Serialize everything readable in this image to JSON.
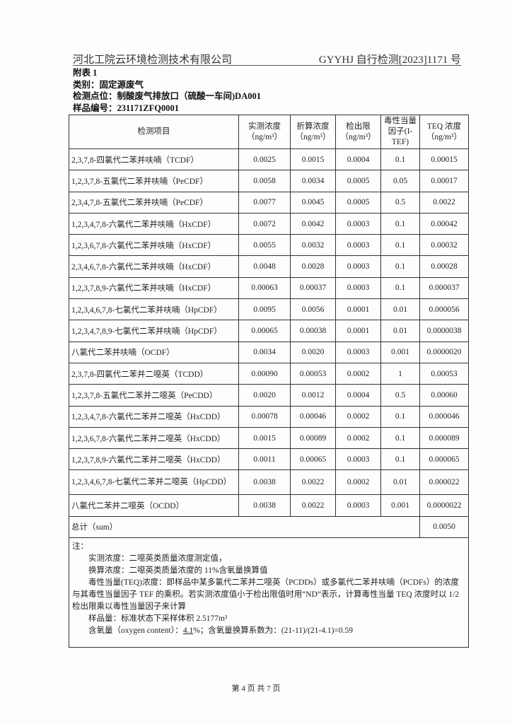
{
  "header": {
    "company": "河北工院云环境检测技术有限公司",
    "report_no": "GYYHJ 自行检测[2023]1171 号"
  },
  "meta": {
    "appendix": "附表 1",
    "category": "类别：固定源废气",
    "location": "检测点位：制酸废气排放口（硫酸一车间)DA001",
    "sample_no": "样品编号：231171ZFQ0001"
  },
  "table": {
    "columns": [
      "检测项目",
      "实测浓度（ng/m³）",
      "折算浓度（ng/m³）",
      "检出限（ng/m³）",
      "毒性当量因子(I-TEF)",
      "TEQ 浓度（ng/m³）"
    ],
    "rows": [
      [
        "2,3,7,8-四氯代二苯并呋喃（TCDF）",
        "0.0025",
        "0.0015",
        "0.0004",
        "0.1",
        "0.00015"
      ],
      [
        "1,2,3,7,8-五氯代二苯并呋喃（PeCDF）",
        "0.0058",
        "0.0034",
        "0.0005",
        "0.05",
        "0.00017"
      ],
      [
        "2,3,4,7,8-五氯代二苯并呋喃（PeCDF）",
        "0.0077",
        "0.0045",
        "0.0005",
        "0.5",
        "0.0022"
      ],
      [
        "1,2,3,4,7,8-六氯代二苯并呋喃（HxCDF）",
        "0.0072",
        "0.0042",
        "0.0003",
        "0.1",
        "0.00042"
      ],
      [
        "1,2,3,6,7,8-六氯代二苯并呋喃（HxCDF）",
        "0.0055",
        "0.0032",
        "0.0003",
        "0.1",
        "0.00032"
      ],
      [
        "2,3,4,6,7,8-六氯代二苯并呋喃（HxCDF）",
        "0.0048",
        "0.0028",
        "0.0003",
        "0.1",
        "0.00028"
      ],
      [
        "1,2,3,7,8,9-六氯代二苯并呋喃（HxCDF）",
        "0.00063",
        "0.00037",
        "0.0003",
        "0.1",
        "0.000037"
      ],
      [
        "1,2,3,4,6,7,8-七氯代二苯并呋喃（HpCDF）",
        "0.0095",
        "0.0056",
        "0.0001",
        "0.01",
        "0.000056"
      ],
      [
        "1,2,3,4,7,8,9-七氯代二苯并呋喃（HpCDF）",
        "0.00065",
        "0.00038",
        "0.0001",
        "0.01",
        "0.0000038"
      ],
      [
        "八氯代二苯并呋喃（OCDF）",
        "0.0034",
        "0.0020",
        "0.0003",
        "0.001",
        "0.0000020"
      ],
      [
        "2,3,7,8-四氯代二苯并二噁英（TCDD）",
        "0.00090",
        "0.00053",
        "0.0002",
        "1",
        "0.00053"
      ],
      [
        "1,2,3,7,8-五氯代二苯并二噁英（PeCDD）",
        "0.0020",
        "0.0012",
        "0.0004",
        "0.5",
        "0.00060"
      ],
      [
        "1,2,3,4,7,8-六氯代二苯并二噁英（HxCDD）",
        "0.00078",
        "0.00046",
        "0.0002",
        "0.1",
        "0.000046"
      ],
      [
        "1,2,3,6,7,8-六氯代二苯并二噁英（HxCDD）",
        "0.0015",
        "0.00089",
        "0.0002",
        "0.1",
        "0.000089"
      ],
      [
        "1,2,3,7,8,9-六氯代二苯并二噁英（HxCDD）",
        "0.0011",
        "0.00065",
        "0.0003",
        "0.1",
        "0.000065"
      ],
      [
        "1,2,3,4,6,7,8-七氯代二苯并二噁英（HpCDD）",
        "0.0038",
        "0.0022",
        "0.0002",
        "0.01",
        "0.000022"
      ],
      [
        "八氯代二苯并二噁英（OCDD）",
        "0.0038",
        "0.0022",
        "0.0003",
        "0.001",
        "0.0000022"
      ]
    ],
    "total_label": "总计（sum）",
    "total_value": "0.0050"
  },
  "notes": {
    "title": "注：",
    "line1": "实测浓度：二噁英类质量浓度测定值，",
    "line2": "换算浓度：二噁英类质量浓度的 11%含氧量换算值",
    "line3": "毒性当量(TEQ)浓度：即样品中某多氯代二苯并二噁英（PCDDs）或多氯代二苯并呋喃（PCDFs）的浓度与其毒性当量因子 TEF 的乘积。若实测浓度值小于检出限值时用“ND”表示，计算毒性当量 TEQ 浓度时以 1/2 检出限乘以毒性当量因子来计算",
    "line4": "样品量：标准状态下采样体积 2.5177m³",
    "line5_prefix": "含氧量（oxygen content）：",
    "line5_value": "4.1",
    "line5_suffix": "%；含氧量换算系数为：(21-11)/(21-4.1)=0.59"
  },
  "footer": {
    "page": "第 4 页 共 7 页"
  }
}
